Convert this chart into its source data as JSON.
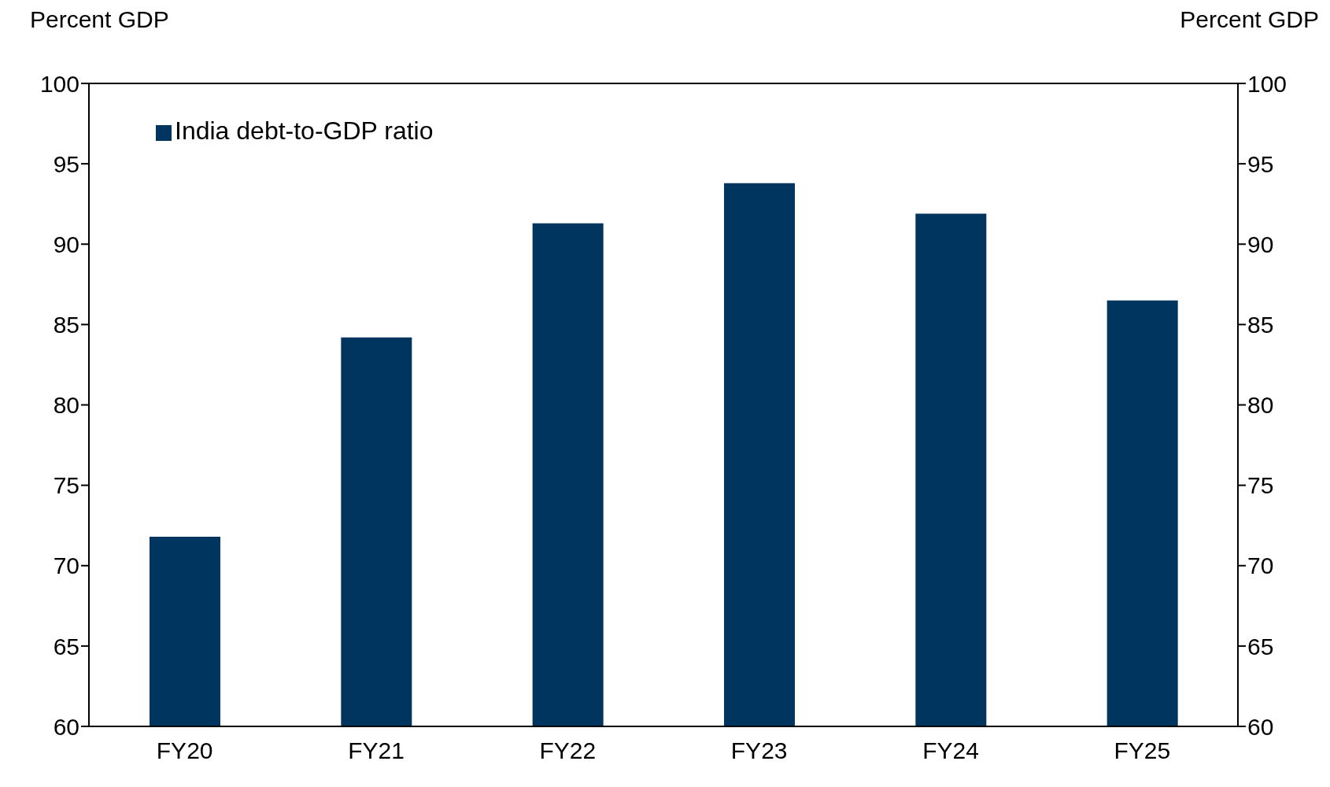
{
  "chart_data": {
    "type": "bar",
    "ylabel": "Percent GDP",
    "y2label": "Percent GDP",
    "categories": [
      "FY20",
      "FY21",
      "FY22",
      "FY23",
      "FY24",
      "FY25"
    ],
    "series": [
      {
        "name": "India debt-to-GDP ratio",
        "color": "#003560",
        "values": [
          71.8,
          84.2,
          91.3,
          93.8,
          91.9,
          86.5
        ]
      }
    ],
    "ylim": [
      60,
      100
    ],
    "yticks": [
      60,
      65,
      70,
      75,
      80,
      85,
      90,
      95,
      100
    ],
    "y2lim": [
      60,
      100
    ],
    "y2ticks": [
      60,
      65,
      70,
      75,
      80,
      85,
      90,
      95,
      100
    ],
    "grid": false,
    "legend": "top left"
  }
}
